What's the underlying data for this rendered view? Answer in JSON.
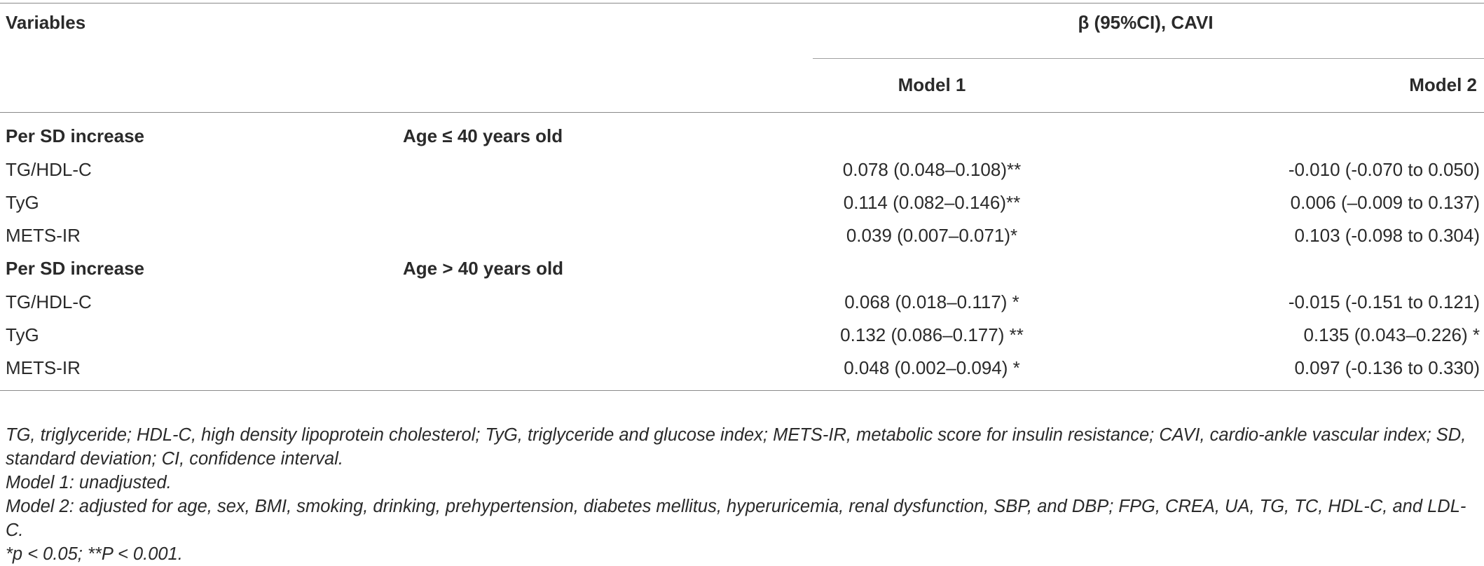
{
  "table": {
    "header": {
      "variables": "Variables",
      "group": "β (95%CI), CAVI",
      "model1": "Model 1",
      "model2": "Model 2"
    },
    "sections": [
      {
        "label": "Per SD increase",
        "age": "Age ≤ 40 years old",
        "rows": [
          {
            "variable": "TG/HDL-C",
            "model1": "0.078 (0.048–0.108)**",
            "model2": "-0.010 (-0.070 to 0.050)"
          },
          {
            "variable": "TyG",
            "model1": "0.114 (0.082–0.146)**",
            "model2": "0.006 (–0.009 to 0.137)"
          },
          {
            "variable": "METS-IR",
            "model1": "0.039 (0.007–0.071)*",
            "model2": "0.103 (-0.098 to 0.304)"
          }
        ]
      },
      {
        "label": "Per SD increase",
        "age": "Age > 40 years old",
        "rows": [
          {
            "variable": "TG/HDL-C",
            "model1": "0.068 (0.018–0.117) *",
            "model2": "-0.015 (-0.151 to 0.121)"
          },
          {
            "variable": "TyG",
            "model1": "0.132 (0.086–0.177) **",
            "model2": "0.135 (0.043–0.226) *"
          },
          {
            "variable": "METS-IR",
            "model1": "0.048 (0.002–0.094) *",
            "model2": "0.097 (-0.136 to 0.330)"
          }
        ]
      }
    ]
  },
  "footnotes": {
    "abbreviations": "TG, triglyceride; HDL-C, high density lipoprotein cholesterol; TyG, triglyceride and glucose index; METS-IR, metabolic score for insulin resistance; CAVI, cardio-ankle vascular index; SD, standard deviation; CI, confidence interval.",
    "model1": "Model 1: unadjusted.",
    "model2": "Model 2: adjusted for age, sex, BMI, smoking, drinking, prehypertension, diabetes mellitus, hyperuricemia, renal dysfunction, SBP, and DBP; FPG, CREA, UA, TG, TC, HDL-C, and LDL-C.",
    "significance": "*p < 0.05; **P < 0.001."
  }
}
